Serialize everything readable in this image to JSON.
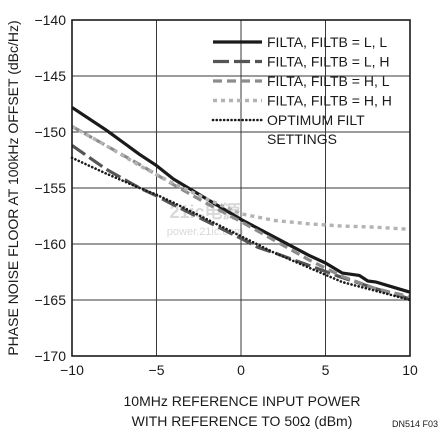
{
  "chart_data": {
    "type": "line",
    "title": "",
    "xlabel_lines": [
      "10MHz REFERENCE INPUT POWER",
      "WITH REFERENCE TO 50Ω (dBm)"
    ],
    "ylabel": "PHASE NOISE FLOOR AT 100kHz OFFSET (dBc/Hz)",
    "xlim": [
      -10,
      10
    ],
    "ylim": [
      -170,
      -140
    ],
    "xticks": [
      -10,
      -5,
      0,
      5,
      10
    ],
    "xtick_labels": [
      "−10",
      "−5",
      "0",
      "5",
      "10"
    ],
    "yticks": [
      -170,
      -165,
      -160,
      -155,
      -150,
      -145,
      -140
    ],
    "ytick_labels": [
      "−170",
      "−165",
      "−160",
      "−155",
      "−150",
      "−145",
      "−140"
    ],
    "grid": true,
    "legend_position": "top-right",
    "figure_code": "DN514 F03",
    "watermark": [
      "21ic电源",
      "power.21ic.com"
    ],
    "series": [
      {
        "name": "FILTA, FILTB = L, L",
        "color": "#1a1a1a",
        "dash": "solid",
        "x": [
          -10,
          -8,
          -6,
          -5,
          -4,
          -2,
          0,
          2,
          4,
          5,
          6,
          7,
          7.5,
          8,
          10
        ],
        "y": [
          -147.8,
          -149.8,
          -152.0,
          -153.0,
          -154.2,
          -156.0,
          -157.8,
          -159.4,
          -161.0,
          -161.7,
          -162.6,
          -162.8,
          -163.3,
          -163.4,
          -164.3
        ]
      },
      {
        "name": "FILTA, FILTB = L, H",
        "color": "#555555",
        "dash": "long-dash",
        "x": [
          -10,
          -8,
          -6,
          -5,
          -4,
          -2,
          0,
          1,
          2,
          4,
          6,
          8,
          10
        ],
        "y": [
          -151.2,
          -153.3,
          -155.0,
          -155.7,
          -156.5,
          -158.0,
          -159.5,
          -160.3,
          -160.8,
          -161.9,
          -163.0,
          -164.0,
          -164.9
        ]
      },
      {
        "name": "FILTA, FILTB = H, L",
        "color": "#8c8c8c",
        "dash": "medium-dash",
        "x": [
          -10,
          -8,
          -6,
          -5,
          -4,
          -2,
          0,
          2,
          4,
          6,
          8,
          10
        ],
        "y": [
          -149.5,
          -151.2,
          -152.9,
          -153.8,
          -154.7,
          -156.4,
          -158.0,
          -159.7,
          -161.4,
          -162.9,
          -164.0,
          -164.7
        ]
      },
      {
        "name": "FILTA, FILTB = H, H",
        "color": "#b3b3b3",
        "dash": "short-dash",
        "x": [
          -10,
          -8,
          -6,
          -5,
          -4,
          -2,
          0,
          2,
          4,
          6,
          8,
          10
        ],
        "y": [
          -149.5,
          -151.2,
          -153.0,
          -153.8,
          -154.6,
          -156.0,
          -157.3,
          -157.9,
          -158.2,
          -158.4,
          -158.5,
          -158.7
        ]
      },
      {
        "name": "OPTIMUM FILT SETTINGS",
        "name_lines": [
          "OPTIMUM FILT",
          "SETTINGS"
        ],
        "color": "#1a1a1a",
        "dash": "dotted",
        "x": [
          -10,
          -8,
          -6,
          -5,
          -4,
          -2,
          0,
          2,
          4,
          6,
          8,
          10
        ],
        "y": [
          -152.3,
          -153.7,
          -155.0,
          -155.6,
          -156.3,
          -157.8,
          -159.3,
          -160.8,
          -162.1,
          -163.4,
          -164.2,
          -165.0
        ]
      }
    ]
  }
}
